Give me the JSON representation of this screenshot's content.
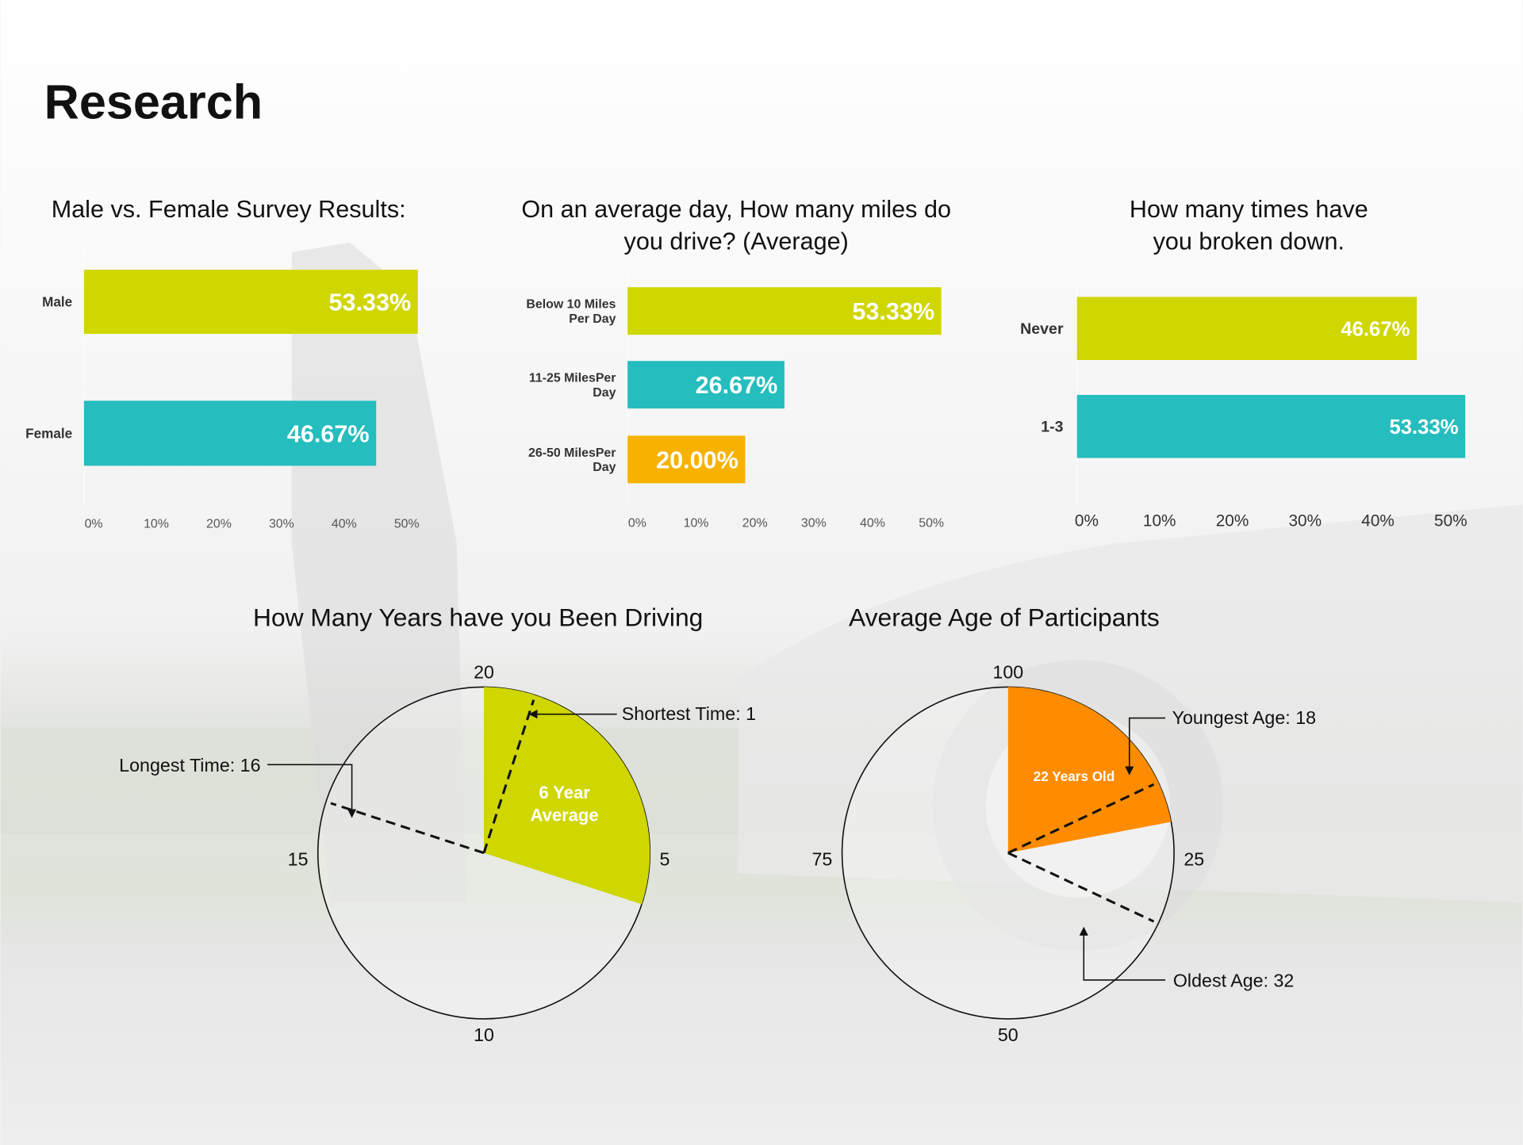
{
  "page_title": "Research",
  "colors": {
    "lime": "#cfd600",
    "teal": "#25bdbd",
    "amber": "#f7b200",
    "orange": "#ff8c00"
  },
  "chart_data": [
    {
      "type": "bar",
      "orientation": "horizontal",
      "title_lines": [
        "Male vs. Female Survey Results:"
      ],
      "categories": [
        [
          "Male"
        ],
        [
          "Female"
        ]
      ],
      "values": [
        53.33,
        46.67
      ],
      "value_labels": [
        "53.33%",
        "46.67%"
      ],
      "bar_colors": [
        "#cfd600",
        "#25bdbd"
      ],
      "xticks": [
        "0%",
        "10%",
        "20%",
        "30%",
        "40%",
        "50%"
      ],
      "xlim": [
        0,
        50
      ]
    },
    {
      "type": "bar",
      "orientation": "horizontal",
      "title_lines": [
        "On an average day, How many miles do",
        "you drive? (Average)"
      ],
      "categories": [
        [
          "Below 10 Miles",
          "Per Day"
        ],
        [
          "11-25 MilesPer",
          "Day"
        ],
        [
          "26-50 MilesPer",
          "Day"
        ]
      ],
      "values": [
        53.33,
        26.67,
        20.0
      ],
      "value_labels": [
        "53.33%",
        "26.67%",
        "20.00%"
      ],
      "bar_colors": [
        "#cfd600",
        "#25bdbd",
        "#f7b200"
      ],
      "xticks": [
        "0%",
        "10%",
        "20%",
        "30%",
        "40%",
        "50%"
      ],
      "xlim": [
        0,
        50
      ]
    },
    {
      "type": "bar",
      "orientation": "horizontal",
      "title_lines": [
        "How many times have",
        "you broken down."
      ],
      "categories": [
        [
          "Never"
        ],
        [
          "1-3"
        ]
      ],
      "values": [
        46.67,
        53.33
      ],
      "value_labels": [
        "46.67%",
        "53.33%"
      ],
      "bar_colors": [
        "#cfd600",
        "#25bdbd"
      ],
      "xticks": [
        "0%",
        "10%",
        "20%",
        "30%",
        "40%",
        "50%"
      ],
      "xlim": [
        0,
        50
      ]
    },
    {
      "type": "pie",
      "title": "How Many Years have you Been Driving",
      "scale_max": 20,
      "dial_labels": [
        "20",
        "5",
        "10",
        "15"
      ],
      "slice": {
        "from": 0,
        "to": 6,
        "color": "#cfd600",
        "label_lines": [
          "6 Year",
          "Average"
        ]
      },
      "markers": [
        {
          "value": 1,
          "label": "Shortest Time: 1"
        },
        {
          "value": 16,
          "label": "Longest Time: 16"
        }
      ]
    },
    {
      "type": "pie",
      "title": "Average Age of Participants",
      "scale_max": 100,
      "dial_labels": [
        "100",
        "25",
        "50",
        "75"
      ],
      "slice": {
        "from": 0,
        "to": 22,
        "color": "#ff8c00",
        "label_lines": [
          "22 Years Old"
        ]
      },
      "markers": [
        {
          "value": 18,
          "label": "Youngest Age: 18"
        },
        {
          "value": 32,
          "label": "Oldest Age: 32"
        }
      ]
    }
  ]
}
